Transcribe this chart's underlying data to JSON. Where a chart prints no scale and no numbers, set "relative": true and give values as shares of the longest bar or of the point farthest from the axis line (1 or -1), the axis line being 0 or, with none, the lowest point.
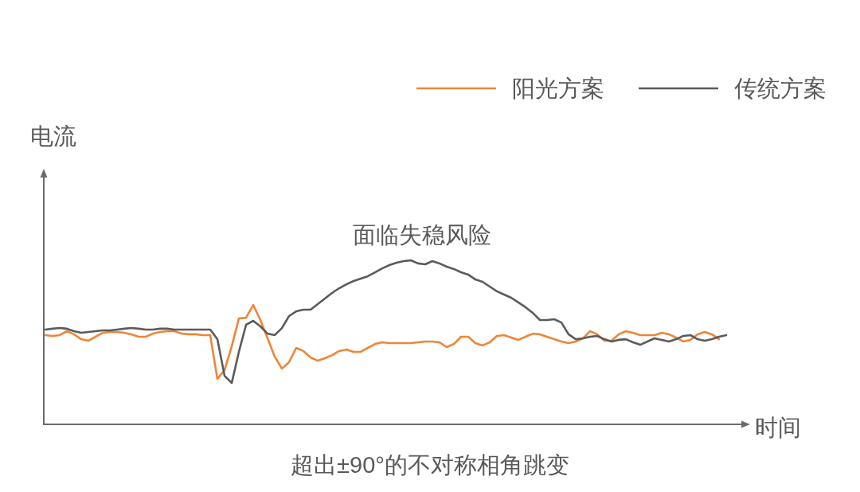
{
  "chart_data": {
    "type": "line",
    "relative": true,
    "xlabel": "时间",
    "ylabel": "电流",
    "legend": "top right",
    "categories": [
      null,
      null,
      null,
      null,
      null,
      null,
      null,
      null,
      null,
      null,
      null,
      null,
      null,
      null,
      null,
      null,
      null,
      null,
      null,
      null,
      null,
      null,
      null,
      null,
      null,
      null,
      null,
      null,
      null,
      null,
      null,
      null,
      null,
      null,
      null,
      null,
      null,
      null,
      null,
      null,
      null,
      null,
      null,
      null,
      null,
      null,
      null,
      null,
      null,
      null,
      null,
      null,
      null,
      null,
      null,
      null,
      null,
      null,
      null,
      null,
      null,
      null,
      null,
      null,
      null,
      null,
      null,
      null,
      null,
      null,
      null,
      null,
      null,
      null,
      null,
      null,
      null,
      null,
      null,
      null,
      null,
      null,
      null,
      null,
      null,
      null,
      null,
      null,
      null,
      null,
      null,
      null,
      null,
      null,
      null,
      null
    ],
    "series": [
      {
        "name": "阳光方案",
        "color": "#ef8537",
        "values": [
          0.544,
          0.539,
          0.544,
          0.568,
          0.549,
          0.519,
          0.51,
          0.534,
          0.558,
          0.563,
          0.563,
          0.558,
          0.549,
          0.534,
          0.534,
          0.553,
          0.563,
          0.568,
          0.568,
          0.553,
          0.549,
          0.549,
          0.544,
          0.544,
          0.277,
          0.33,
          0.476,
          0.646,
          0.65,
          0.728,
          0.636,
          0.524,
          0.413,
          0.34,
          0.379,
          0.466,
          0.447,
          0.408,
          0.388,
          0.403,
          0.422,
          0.447,
          0.456,
          0.442,
          0.442,
          0.466,
          0.49,
          0.5,
          0.495,
          0.495,
          0.495,
          0.495,
          0.5,
          0.505,
          0.505,
          0.5,
          0.471,
          0.49,
          0.534,
          0.534,
          0.495,
          0.481,
          0.5,
          0.539,
          0.544,
          0.529,
          0.515,
          0.534,
          0.553,
          0.549,
          0.534,
          0.519,
          0.505,
          0.495,
          0.505,
          0.524,
          0.568,
          0.549,
          0.51,
          0.51,
          0.549,
          0.568,
          0.558,
          0.544,
          0.544,
          0.544,
          0.558,
          0.549,
          0.529,
          0.505,
          0.515,
          0.549,
          0.563,
          0.549,
          0.519,
          null
        ]
      },
      {
        "name": "传统方案",
        "color": "#5b5b5b",
        "values": [
          0.578,
          0.583,
          0.587,
          0.583,
          0.568,
          0.558,
          0.563,
          0.568,
          0.573,
          0.573,
          0.578,
          0.583,
          0.587,
          0.583,
          0.578,
          0.578,
          0.583,
          0.583,
          0.578,
          0.578,
          0.578,
          0.578,
          0.578,
          0.578,
          0.519,
          0.296,
          0.252,
          0.442,
          0.607,
          0.631,
          0.597,
          0.553,
          0.544,
          0.587,
          0.66,
          0.689,
          0.699,
          0.699,
          0.733,
          0.767,
          0.801,
          0.83,
          0.854,
          0.874,
          0.888,
          0.903,
          0.927,
          0.951,
          0.971,
          0.985,
          0.995,
          1,
          0.981,
          0.976,
          0.995,
          0.981,
          0.961,
          0.947,
          0.927,
          0.913,
          0.883,
          0.869,
          0.84,
          0.811,
          0.791,
          0.772,
          0.743,
          0.714,
          0.68,
          0.636,
          0.636,
          0.641,
          0.621,
          0.549,
          0.519,
          0.524,
          0.534,
          0.539,
          0.519,
          0.505,
          0.515,
          0.519,
          0.5,
          0.485,
          0.505,
          0.524,
          0.515,
          0.505,
          0.519,
          0.539,
          0.544,
          0.519,
          0.51,
          0.519,
          0.534,
          0.544
        ]
      }
    ],
    "annotations": [
      "面临失稳风险",
      "超出±90°的不对称相角跳变"
    ]
  }
}
